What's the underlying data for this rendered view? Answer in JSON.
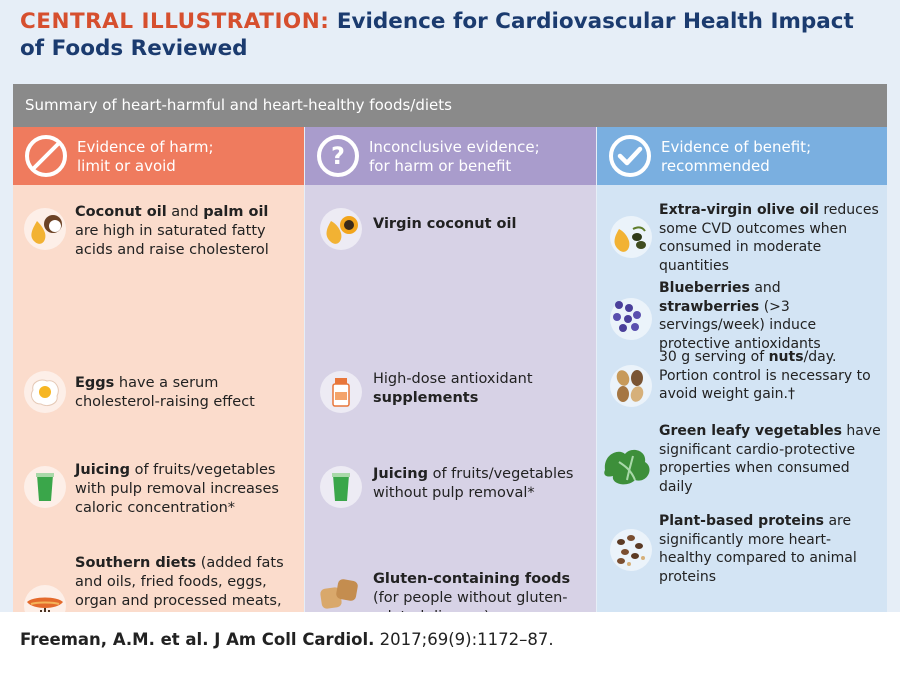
{
  "title": {
    "label": "CENTRAL ILLUSTRATION:",
    "text": "Evidence for Cardiovascular Health Impact of Foods Reviewed"
  },
  "summary": "Summary of heart-harmful and heart-healthy foods/diets",
  "columns": {
    "harm": {
      "line1": "Evidence of harm;",
      "line2": "limit or avoid",
      "icon": "prohibition-icon",
      "items": [
        {
          "b1": "Coconut oil",
          "t1": " and ",
          "b2": "palm oil",
          "t2": " are high in saturated fatty acids and raise cholesterol"
        },
        {
          "b1": "Eggs",
          "t1": " have a serum cholesterol-raising effect"
        },
        {
          "b1": "Juicing",
          "t1": " of fruits/vegetables with pulp removal increases caloric concentration*"
        },
        {
          "b1": "Southern diets",
          "t1": " (added fats and oils, fried foods, eggs, organ and processed meats, sugar-sweetened drinks)"
        }
      ]
    },
    "inconclusive": {
      "line1": "Inconclusive evidence;",
      "line2": "for harm or benefit",
      "icon": "question-icon",
      "items": [
        {
          "b1": "Virgin coconut oil"
        },
        {
          "t0": "High-dose antioxidant ",
          "b1": "supplements"
        },
        {
          "b1": "Juicing",
          "t1": " of fruits/vegetables without pulp removal*"
        },
        {
          "b1": "Gluten-containing foods",
          "t1": " (for people without gluten-related disease)"
        }
      ]
    },
    "benefit": {
      "line1": "Evidence of benefit;",
      "line2": "recommended",
      "icon": "checkmark-icon",
      "items": [
        {
          "b1": "Extra-virgin olive oil",
          "t1": " reduces some CVD outcomes when consumed in moderate quantities"
        },
        {
          "b1": "Blueberries",
          "t1": " and ",
          "b2": "strawberries",
          "t2": " (>3 servings/week) induce protective antioxidants"
        },
        {
          "t0": "30 g serving of ",
          "b1": "nuts",
          "t1": "/day. Portion control is necessary to avoid weight gain.†"
        },
        {
          "b1": "Green leafy vegetables",
          "t1": " have significant cardio-protective properties when consumed daily"
        },
        {
          "b1": "Plant-based proteins",
          "t1": " are significantly more heart-healthy compared to animal proteins"
        }
      ]
    }
  },
  "citation": {
    "authors": "Freeman, A.M. et al. J Am Coll Cardiol.",
    "ref": " 2017;69(9):1172–87."
  }
}
